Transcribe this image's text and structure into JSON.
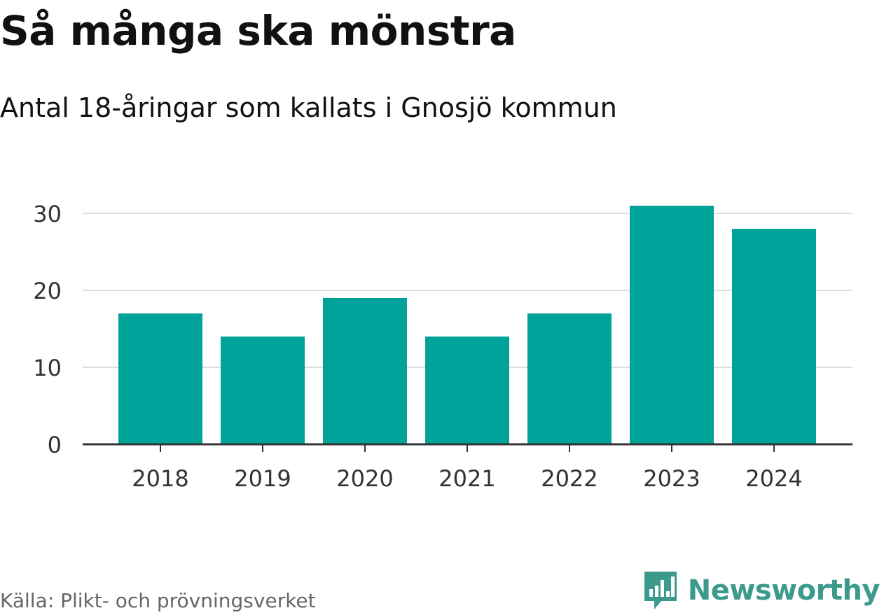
{
  "title": "Så många ska mönstra",
  "subtitle": "Antal 18-åringar som kallats i Gnosjö kommun",
  "source": "Källa: Plikt- och prövningsverket",
  "brand": {
    "name": "Newsworthy",
    "logo_icon": "newsworthy-logo-icon",
    "color": "#3c9a8c"
  },
  "chart_data": {
    "type": "bar",
    "categories": [
      "2018",
      "2019",
      "2020",
      "2021",
      "2022",
      "2023",
      "2024"
    ],
    "values": [
      17,
      14,
      19,
      14,
      17,
      31,
      28
    ],
    "xlabel": "",
    "ylabel": "",
    "ylim": [
      0,
      31
    ],
    "yticks": [
      0,
      10,
      20,
      30
    ],
    "grid": true,
    "bar_color": "#00a39a"
  }
}
